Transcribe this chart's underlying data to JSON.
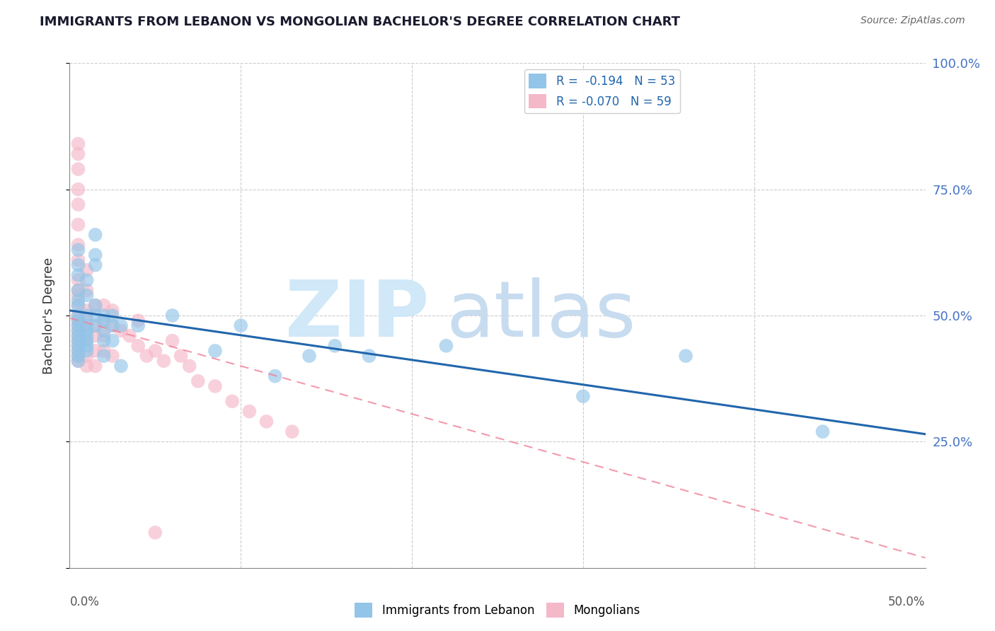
{
  "title": "IMMIGRANTS FROM LEBANON VS MONGOLIAN BACHELOR'S DEGREE CORRELATION CHART",
  "source": "Source: ZipAtlas.com",
  "ylabel": "Bachelor's Degree",
  "xlim": [
    0.0,
    0.5
  ],
  "ylim": [
    0.0,
    1.0
  ],
  "yticks": [
    0.0,
    0.25,
    0.5,
    0.75,
    1.0
  ],
  "ytick_labels_right": [
    "",
    "25.0%",
    "50.0%",
    "75.0%",
    "100.0%"
  ],
  "xticks": [
    0.0,
    0.1,
    0.2,
    0.3,
    0.4,
    0.5
  ],
  "blue_color": "#92C5E8",
  "pink_color": "#F5B8C8",
  "line_blue_color": "#2166AC",
  "line_pink_color": "#F08098",
  "blue_x": [
    0.005,
    0.005,
    0.005,
    0.005,
    0.005,
    0.005,
    0.005,
    0.005,
    0.005,
    0.005,
    0.005,
    0.005,
    0.005,
    0.005,
    0.005,
    0.005,
    0.01,
    0.01,
    0.01,
    0.01,
    0.01,
    0.01,
    0.01,
    0.01,
    0.01,
    0.015,
    0.015,
    0.015,
    0.015,
    0.015,
    0.015,
    0.02,
    0.02,
    0.02,
    0.02,
    0.02,
    0.025,
    0.025,
    0.025,
    0.03,
    0.03,
    0.04,
    0.06,
    0.085,
    0.1,
    0.12,
    0.14,
    0.155,
    0.175,
    0.22,
    0.3,
    0.36,
    0.44
  ],
  "blue_y": [
    0.5,
    0.49,
    0.48,
    0.47,
    0.46,
    0.45,
    0.44,
    0.43,
    0.42,
    0.41,
    0.52,
    0.53,
    0.55,
    0.58,
    0.6,
    0.63,
    0.5,
    0.48,
    0.47,
    0.46,
    0.45,
    0.44,
    0.43,
    0.54,
    0.57,
    0.48,
    0.5,
    0.52,
    0.6,
    0.62,
    0.66,
    0.5,
    0.49,
    0.47,
    0.45,
    0.42,
    0.5,
    0.48,
    0.45,
    0.48,
    0.4,
    0.48,
    0.5,
    0.43,
    0.48,
    0.38,
    0.42,
    0.44,
    0.42,
    0.44,
    0.34,
    0.42,
    0.27
  ],
  "pink_x": [
    0.005,
    0.005,
    0.005,
    0.005,
    0.005,
    0.005,
    0.005,
    0.005,
    0.005,
    0.005,
    0.005,
    0.005,
    0.005,
    0.005,
    0.005,
    0.005,
    0.005,
    0.005,
    0.005,
    0.005,
    0.005,
    0.005,
    0.01,
    0.01,
    0.01,
    0.01,
    0.01,
    0.01,
    0.01,
    0.01,
    0.015,
    0.015,
    0.015,
    0.015,
    0.015,
    0.02,
    0.02,
    0.02,
    0.02,
    0.025,
    0.025,
    0.025,
    0.03,
    0.035,
    0.04,
    0.04,
    0.045,
    0.05,
    0.055,
    0.06,
    0.065,
    0.07,
    0.075,
    0.085,
    0.095,
    0.105,
    0.115,
    0.13,
    0.05
  ],
  "pink_y": [
    0.84,
    0.82,
    0.79,
    0.75,
    0.72,
    0.68,
    0.64,
    0.61,
    0.57,
    0.54,
    0.5,
    0.49,
    0.48,
    0.47,
    0.46,
    0.45,
    0.44,
    0.43,
    0.42,
    0.41,
    0.52,
    0.55,
    0.59,
    0.55,
    0.51,
    0.49,
    0.47,
    0.45,
    0.42,
    0.4,
    0.52,
    0.48,
    0.46,
    0.43,
    0.4,
    0.52,
    0.49,
    0.46,
    0.43,
    0.51,
    0.48,
    0.42,
    0.47,
    0.46,
    0.49,
    0.44,
    0.42,
    0.43,
    0.41,
    0.45,
    0.42,
    0.4,
    0.37,
    0.36,
    0.33,
    0.31,
    0.29,
    0.27,
    0.07
  ],
  "blue_line_x0": 0.0,
  "blue_line_y0": 0.51,
  "blue_line_x1": 0.5,
  "blue_line_y1": 0.265,
  "pink_line_x0": 0.0,
  "pink_line_y0": 0.495,
  "pink_line_x1": 0.5,
  "pink_line_y1": 0.02,
  "watermark_zip_color": "#D0E8F8",
  "watermark_atlas_color": "#C8DCF0",
  "legend_labels": [
    "R =  -0.194   N = 53",
    "R = -0.070   N = 59"
  ],
  "bottom_legend_labels": [
    "Immigrants from Lebanon",
    "Mongolians"
  ]
}
